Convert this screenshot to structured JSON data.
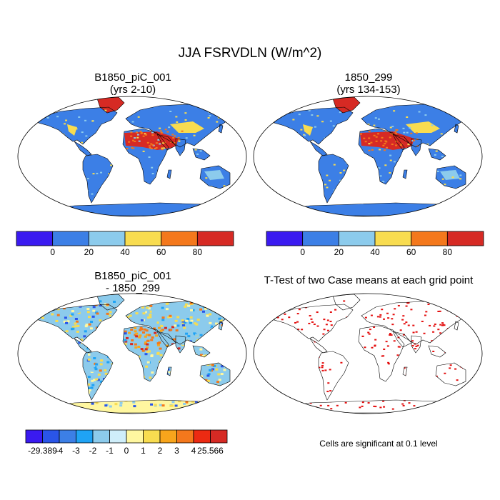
{
  "title": "JJA FSRVDLN (W/m^2)",
  "panels": [
    {
      "title_line1": "B1850_piC_001",
      "title_line2": "(yrs 2-10)"
    },
    {
      "title_line1": "1850_299",
      "title_line2": "(yrs 134-153)"
    },
    {
      "title_line1": "B1850_piC_001",
      "title_line2": "- 1850_299"
    },
    {
      "title_line1": "T-Test of two Case means at each grid point",
      "title_line2": ""
    }
  ],
  "colorbar_abs": {
    "colors": [
      "#3a1af0",
      "#3c7fe6",
      "#8ccbec",
      "#f8dc50",
      "#f4781c",
      "#d62a24"
    ],
    "labels": [
      "0",
      "20",
      "40",
      "60",
      "80"
    ]
  },
  "colorbar_diff": {
    "colors": [
      "#3a1af0",
      "#2a55e8",
      "#3c7fe6",
      "#1fa3f5",
      "#8ccbec",
      "#cfeefa",
      "#fff7a0",
      "#f8dc50",
      "#f8a51c",
      "#f4781c",
      "#ec2a12",
      "#d62a24"
    ],
    "labels": [
      "-29.389",
      "-4",
      "-3",
      "-2",
      "-1",
      "0",
      "1",
      "2",
      "3",
      "4",
      "25.566"
    ]
  },
  "note": "Cells are significant at 0.1 level",
  "map_colors": {
    "ocean": "#ffffff",
    "land_base": "#3c7fe6",
    "desert": "#d62a24",
    "mid": "#f8dc50",
    "light": "#8ccbec",
    "sig": "#e41010"
  }
}
